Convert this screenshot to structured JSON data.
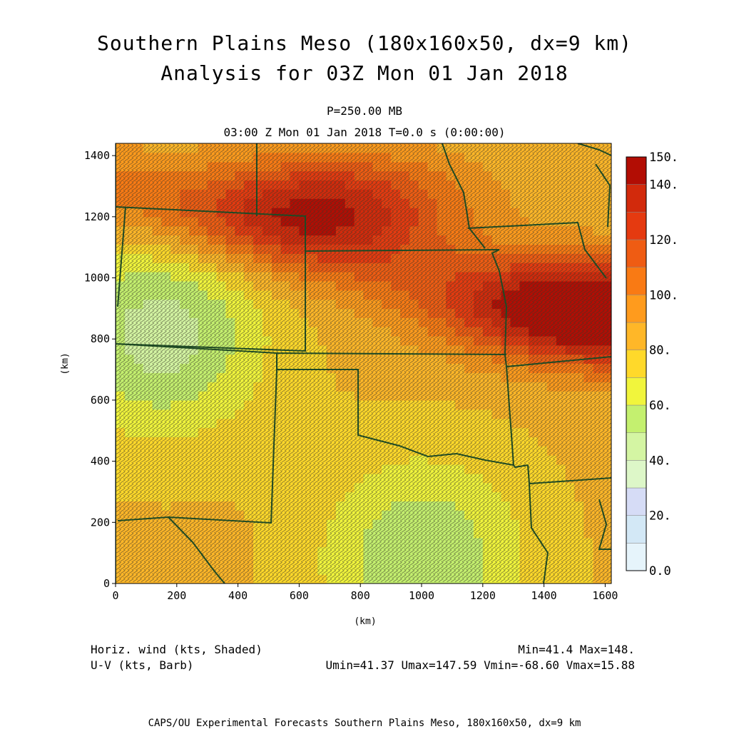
{
  "header": {
    "title_line1": "Southern Plains Meso (180x160x50, dx=9 km)",
    "title_line2": "Analysis for 03Z Mon 01 Jan 2018",
    "level": "P=250.00 MB",
    "time": "03:00 Z Mon 01 Jan 2018    T=0.0 s (0:00:00)"
  },
  "footer": {
    "shaded_label": "Horiz. wind (kts, Shaded)",
    "barb_label": "U-V (kts, Barb)",
    "minmax": "Min=41.4 Max=148.",
    "uv_stats": "Umin=41.37 Umax=147.59 Vmin=-68.60 Vmax=15.88",
    "credit": "CAPS/OU Experimental Forecasts  Southern Plains Meso, 180x160x50, dx=9 km"
  },
  "chart_data": {
    "type": "heatmap",
    "title": "Southern Plains Meso (180x160x50, dx=9 km)",
    "xlabel": "(km)",
    "ylabel": "(km)",
    "xlim": [
      0,
      1620
    ],
    "ylim": [
      0,
      1440
    ],
    "x_ticks": [
      0,
      200,
      400,
      600,
      800,
      1000,
      1200,
      1400,
      1600
    ],
    "y_ticks": [
      0,
      200,
      400,
      600,
      800,
      1000,
      1200,
      1400
    ],
    "x_tick_labels": [
      "0",
      "200",
      "400",
      "600",
      "800",
      "1000",
      "1200",
      "1400",
      "1600"
    ],
    "y_tick_labels": [
      "0",
      "200",
      "400",
      "600",
      "800",
      "1000",
      "1200",
      "1400"
    ],
    "field": "Horiz. wind (kts)",
    "min": 41.4,
    "max": 148,
    "colorbar": {
      "min": 0,
      "max": 150,
      "step": 10,
      "tick_labels": [
        {
          "value": 0,
          "label": "0.0"
        },
        {
          "value": 20,
          "label": "20."
        },
        {
          "value": 40,
          "label": "40."
        },
        {
          "value": 60,
          "label": "60."
        },
        {
          "value": 80,
          "label": "80."
        },
        {
          "value": 100,
          "label": "100."
        },
        {
          "value": 120,
          "label": "120."
        },
        {
          "value": 140,
          "label": "140."
        },
        {
          "value": 150,
          "label": "150."
        }
      ],
      "colors": [
        "#e6f4fb",
        "#d3e8f6",
        "#d6dcf6",
        "#ddf7c8",
        "#d4f5a3",
        "#c4f06f",
        "#f1f53c",
        "#ffd92a",
        "#ffb728",
        "#ff9b1d",
        "#f97a14",
        "#ef5c13",
        "#e53a10",
        "#d22a0c",
        "#b20d04"
      ]
    },
    "wind_maxima": [
      {
        "x": 1560,
        "y": 900,
        "speed": 148
      },
      {
        "x": 700,
        "y": 1240,
        "speed": 135
      }
    ],
    "wind_minima": [
      {
        "x": 150,
        "y": 820,
        "speed": 45
      },
      {
        "x": 1000,
        "y": 80,
        "speed": 50
      }
    ]
  }
}
